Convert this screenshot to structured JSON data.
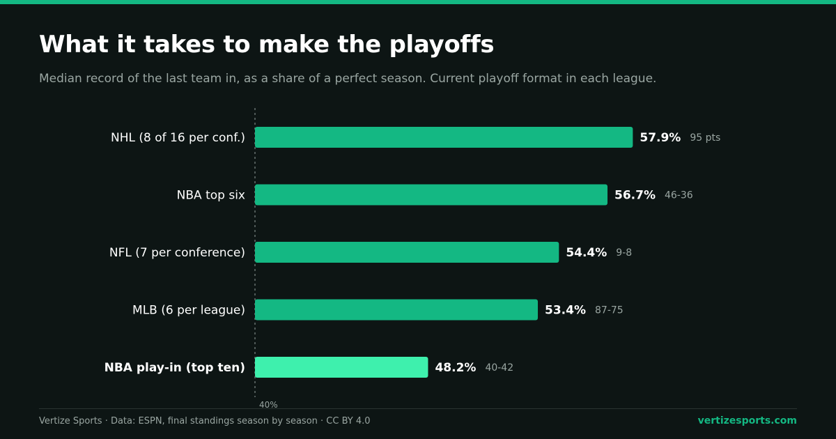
{
  "header": {
    "title": "What it takes to make the playoffs",
    "subtitle": "Median record of the last team in, as a share of a perfect season. Current playoff format in each league."
  },
  "chart_data": {
    "type": "bar",
    "orientation": "horizontal",
    "categories": [
      "NHL (8 of 16 per conf.)",
      "NBA top six",
      "NFL (7 per conference)",
      "MLB (6 per league)",
      "NBA play-in (top ten)"
    ],
    "values": [
      57.9,
      56.7,
      54.4,
      53.4,
      48.2
    ],
    "value_labels": [
      "57.9%",
      "56.7%",
      "54.4%",
      "53.4%",
      "48.2%"
    ],
    "records": [
      "95 pts",
      "46-36",
      "9-8",
      "87-75",
      "40-42"
    ],
    "highlight_index": 4,
    "xlim": [
      40,
      60
    ],
    "baseline_label": "40%",
    "colors": {
      "bar": "#14b883",
      "highlight": "#3ef0ad",
      "text": "#ffffff",
      "muted": "#9aa6a2"
    }
  },
  "footer": {
    "source": "Vertize Sports · Data: ESPN, final standings season by season · CC BY 4.0",
    "site": "vertizesports.com"
  }
}
